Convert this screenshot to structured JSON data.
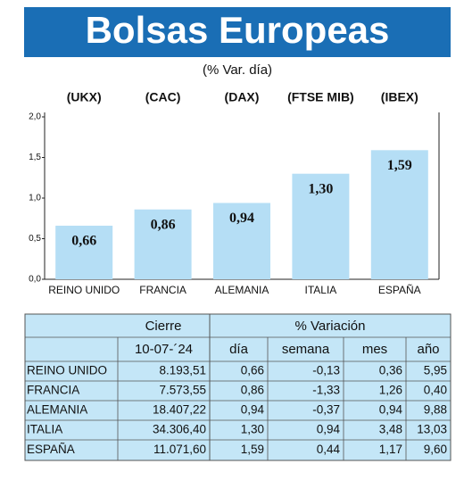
{
  "chart_data": {
    "type": "bar",
    "title": "Bolsas Europeas",
    "subtitle": "(% Var. día)",
    "tickers": [
      "(UKX)",
      "(CAC)",
      "(DAX)",
      "(FTSE MIB)",
      "(IBEX)"
    ],
    "categories": [
      "REINO UNIDO",
      "FRANCIA",
      "ALEMANIA",
      "ITALIA",
      "ESPAÑA"
    ],
    "values": [
      0.66,
      0.86,
      0.94,
      1.3,
      1.59
    ],
    "value_labels": [
      "0,66",
      "0,86",
      "0,94",
      "1,30",
      "1,59"
    ],
    "color": "#b5def5",
    "ylim": [
      0,
      2
    ],
    "yticks": [
      {
        "value": 0,
        "label": "0,0"
      },
      {
        "value": 0.5,
        "label": "0,5"
      },
      {
        "value": 1,
        "label": "1,0"
      },
      {
        "value": 1.5,
        "label": "1,5"
      },
      {
        "value": 2,
        "label": "2,0"
      }
    ],
    "grid": false
  },
  "table": {
    "header": [
      "Cierre",
      "% Variación"
    ],
    "subheader": [
      "10-07-´24",
      "día",
      "semana",
      "mes",
      "año"
    ],
    "rows": [
      [
        "REINO UNIDO",
        "8.193,51",
        "0,66",
        "-0,13",
        "0,36",
        "5,95"
      ],
      [
        "FRANCIA",
        "7.573,55",
        "0,86",
        "-1,33",
        "1,26",
        "0,40"
      ],
      [
        "ALEMANIA",
        "18.407,22",
        "0,94",
        "-0,37",
        "0,94",
        "9,88"
      ],
      [
        "ITALIA",
        "34.306,40",
        "1,30",
        "0,94",
        "3,48",
        "13,03"
      ],
      [
        "ESPAÑA",
        "11.071,60",
        "1,59",
        "0,44",
        "1,17",
        "9,60"
      ]
    ]
  }
}
